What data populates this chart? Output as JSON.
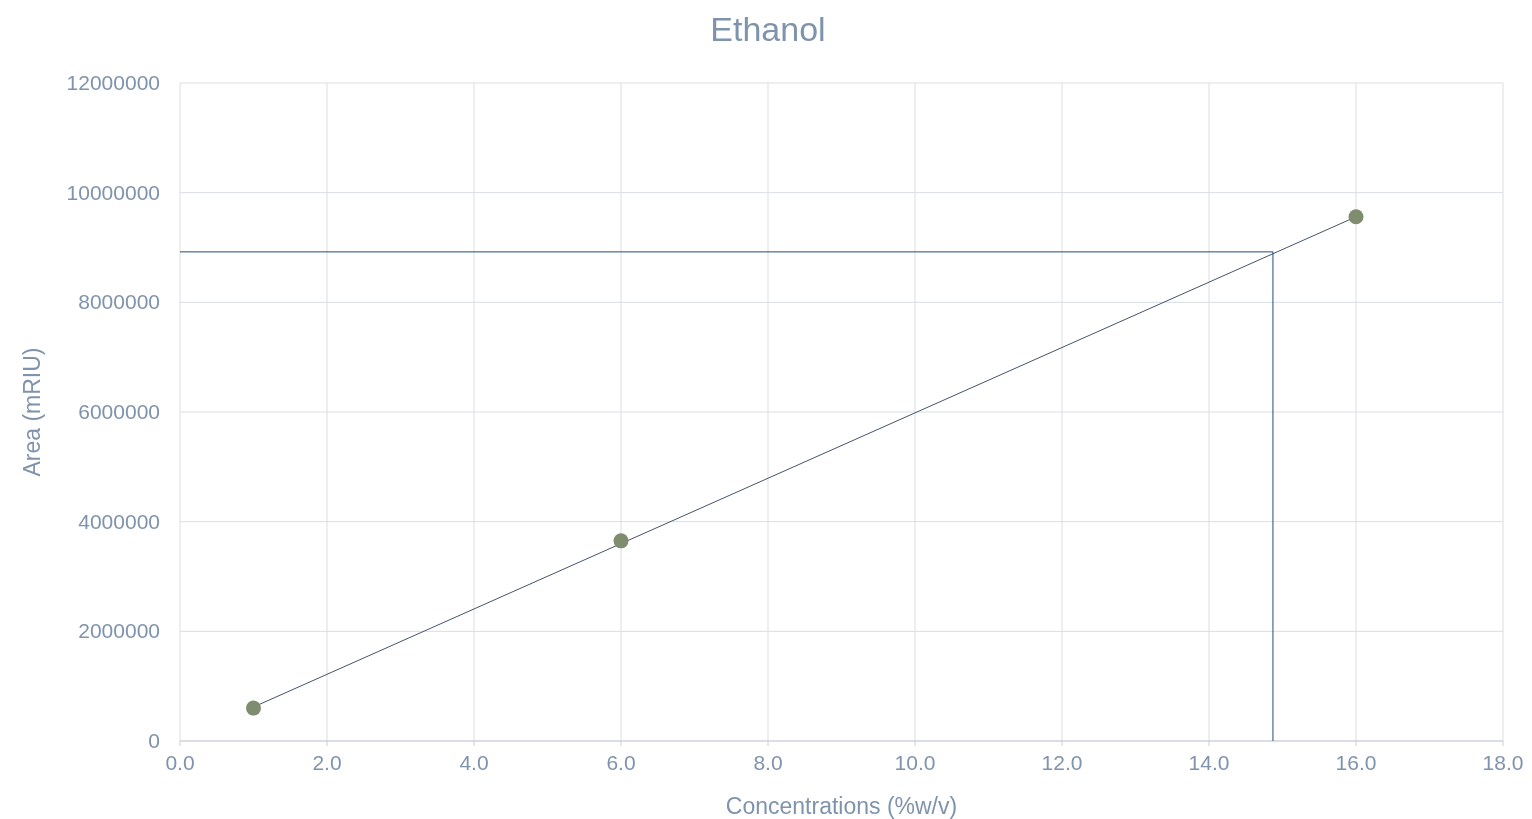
{
  "chart_data": {
    "type": "scatter",
    "title": "Ethanol",
    "xlabel": "Concentrations (%w/v)",
    "ylabel": "Area (mRIU)",
    "xlim": [
      0,
      18
    ],
    "xticks": [
      {
        "value": 0,
        "label": "0.0"
      },
      {
        "value": 2,
        "label": "2.0"
      },
      {
        "value": 4,
        "label": "4.0"
      },
      {
        "value": 6,
        "label": "6.0"
      },
      {
        "value": 8,
        "label": "8.0"
      },
      {
        "value": 10,
        "label": "10.0"
      },
      {
        "value": 12,
        "label": "12.0"
      },
      {
        "value": 14,
        "label": "14.0"
      },
      {
        "value": 16,
        "label": "16.0"
      },
      {
        "value": 18,
        "label": "18.0"
      }
    ],
    "ylim": [
      0,
      12000000
    ],
    "yticks": [
      0,
      2000000,
      4000000,
      6000000,
      8000000,
      10000000,
      12000000
    ],
    "grid": true,
    "series": [
      {
        "type": "line",
        "color": "#44546a",
        "marker": "none",
        "x": [
          1,
          16
        ],
        "values": [
          620000,
          9560000
        ]
      },
      {
        "type": "line",
        "color": "#1f4e79",
        "marker": "none",
        "x": [
          0,
          14.87,
          14.87
        ],
        "values": [
          8920000,
          8920000,
          0
        ]
      },
      {
        "color": "#7f8c6d",
        "marker": "circle",
        "x": [
          1,
          6,
          16
        ],
        "values": [
          600000,
          3650000,
          9560000
        ]
      }
    ]
  }
}
